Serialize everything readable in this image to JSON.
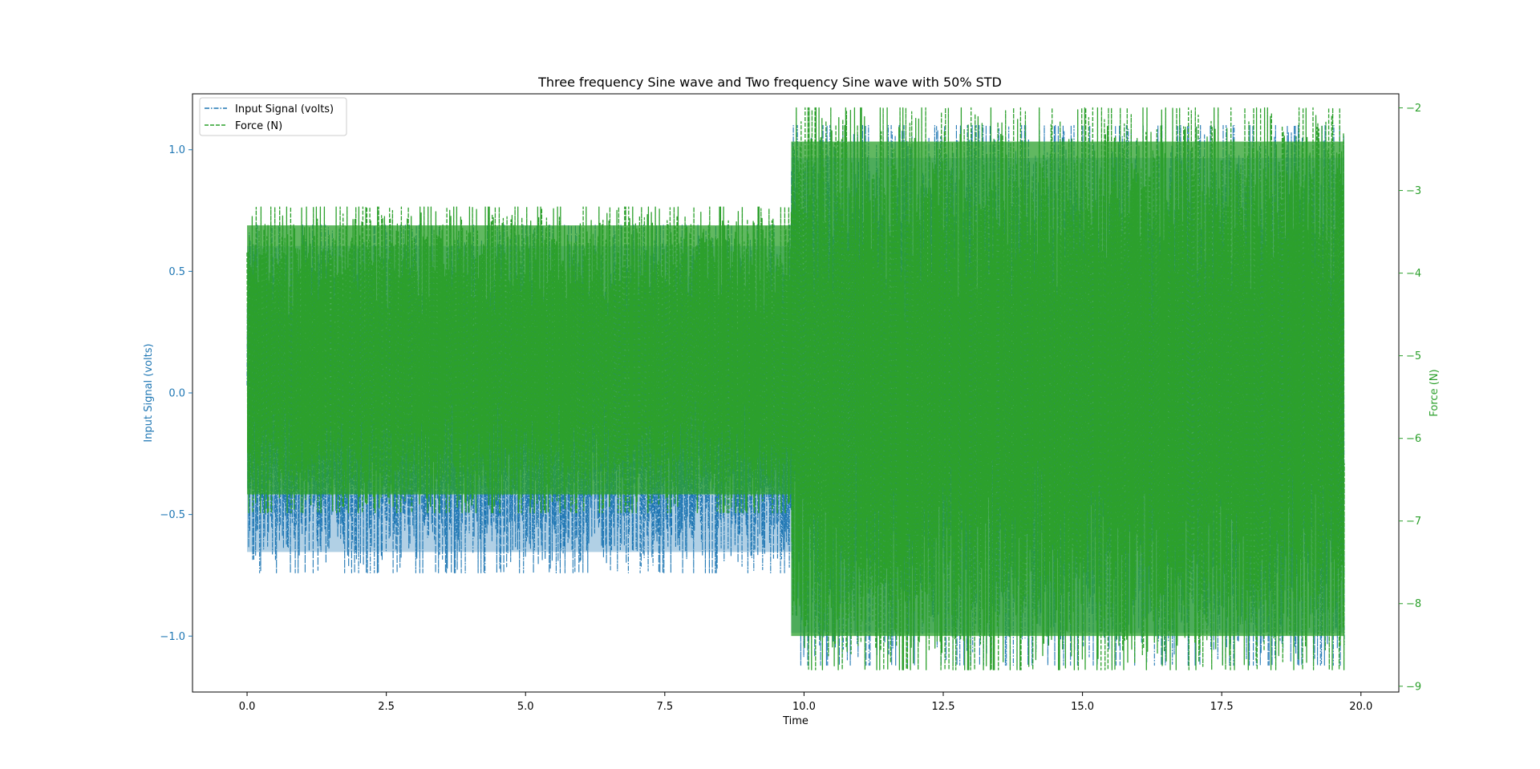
{
  "chart_data": {
    "type": "line",
    "title": "Three frequency Sine wave and Two frequency Sine wave with 50% STD",
    "xlabel": "Time",
    "ylabel_left": "Input Signal (volts)",
    "ylabel_right": "Force (N)",
    "xlim": [
      -0.98,
      20.68
    ],
    "ylim_left": [
      -1.23,
      1.23
    ],
    "ylim_right": [
      -9.07,
      -1.83
    ],
    "x_ticks": [
      "0.0",
      "2.5",
      "5.0",
      "7.5",
      "10.0",
      "12.5",
      "15.0",
      "17.5",
      "20.0"
    ],
    "x_tick_values": [
      0,
      2.5,
      5,
      7.5,
      10,
      12.5,
      15,
      17.5,
      20
    ],
    "y_left_ticks": [
      "−1.0",
      "−0.5",
      "0.0",
      "0.5",
      "1.0"
    ],
    "y_left_tick_values": [
      -1,
      -0.5,
      0,
      0.5,
      1
    ],
    "y_right_ticks": [
      "−9",
      "−8",
      "−7",
      "−6",
      "−5",
      "−4",
      "−3",
      "−2"
    ],
    "y_right_tick_values": [
      -9,
      -8,
      -7,
      -6,
      -5,
      -4,
      -3,
      -2
    ],
    "grid": false,
    "legend_position": "top-left",
    "series": [
      {
        "name": "Input Signal (volts)",
        "axis": "left",
        "color": "#1f77b4",
        "style": "dashdot",
        "segments": [
          {
            "t_start": 0.0,
            "t_end": 9.77,
            "min": -0.74,
            "max": 0.69
          },
          {
            "t_start": 9.77,
            "t_end": 19.7,
            "min": -1.12,
            "max": 1.1
          }
        ]
      },
      {
        "name": "Force (N)",
        "axis": "right",
        "color": "#2ca02c",
        "style": "dashed",
        "segments": [
          {
            "t_start": 0.0,
            "t_end": 9.77,
            "min": -6.9,
            "max": -3.2
          },
          {
            "t_start": 9.77,
            "t_end": 19.7,
            "min": -8.8,
            "max": -2.0
          }
        ]
      }
    ]
  }
}
